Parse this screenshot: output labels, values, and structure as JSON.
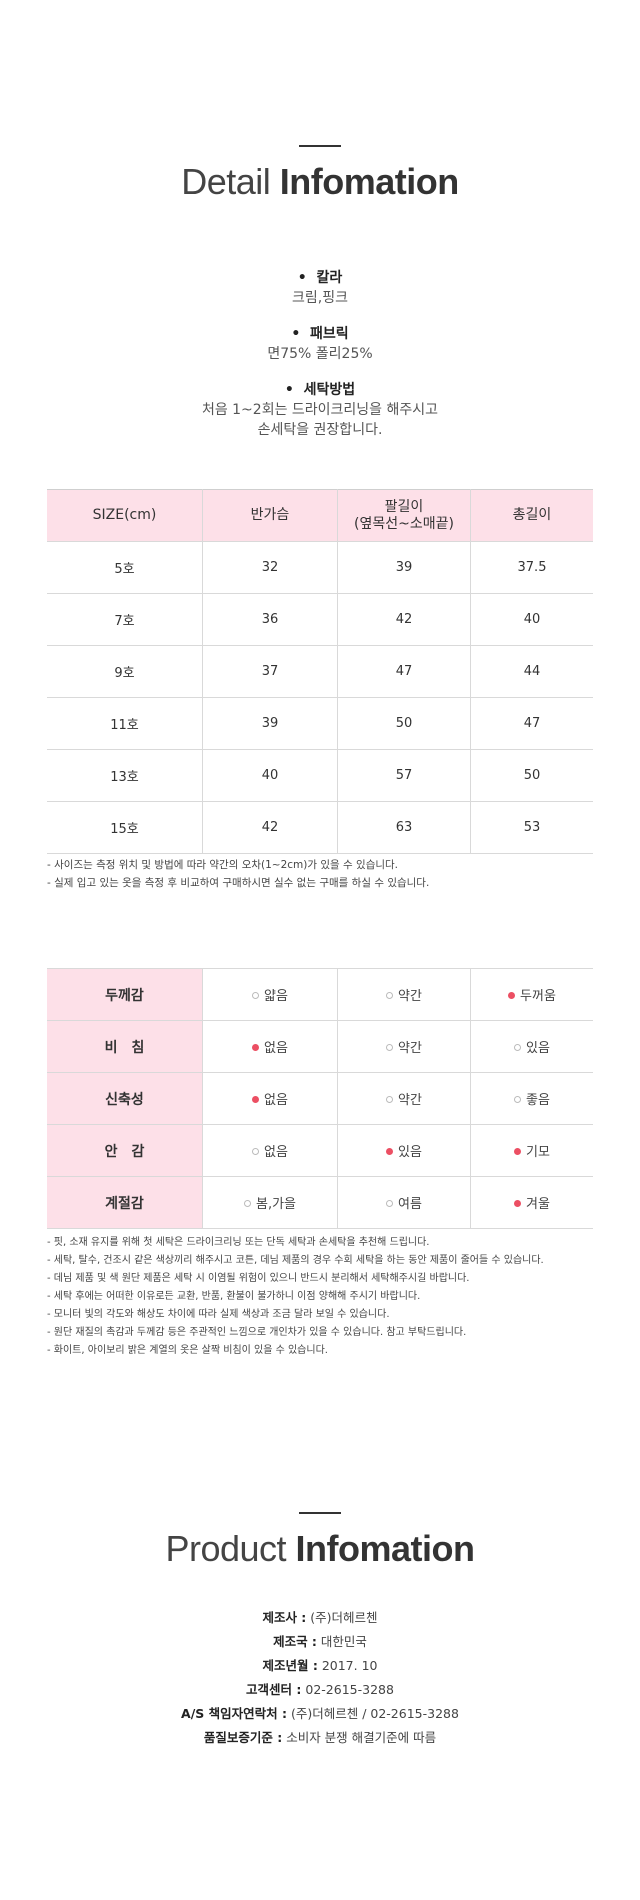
{
  "detail_title": {
    "light": "Detail",
    "bold": "Infomation"
  },
  "specs": [
    {
      "head": "칼라",
      "lines": [
        "크림,핑크"
      ]
    },
    {
      "head": "패브릭",
      "lines": [
        "면75% 폴리25%"
      ]
    },
    {
      "head": "세탁방법",
      "lines": [
        "처음 1~2회는 드라이크리닝을 해주시고",
        "손세탁을 권장합니다."
      ]
    }
  ],
  "bullet": "•",
  "size_table": {
    "headers": [
      "SIZE(cm)",
      "반가슴",
      "팔길이",
      "(옆목선~소매끝)",
      "총길이"
    ],
    "rows": [
      [
        "5호",
        "32",
        "39",
        "37.5"
      ],
      [
        "7호",
        "36",
        "42",
        "40"
      ],
      [
        "9호",
        "37",
        "47",
        "44"
      ],
      [
        "11호",
        "39",
        "50",
        "47"
      ],
      [
        "13호",
        "40",
        "57",
        "50"
      ],
      [
        "15호",
        "42",
        "63",
        "53"
      ]
    ]
  },
  "size_notes": [
    "- 사이즈는 측정 위치 및 방법에 따라 약간의 오차(1~2cm)가 있을 수 있습니다.",
    "- 실제 입고 있는 옷을 측정 후 비교하여 구매하시면 실수 없는 구매를 하실 수 있습니다."
  ],
  "feature_table": [
    {
      "label": "두께감",
      "options": [
        "얇음",
        "약간",
        "두꺼움"
      ],
      "selected": [
        false,
        false,
        true
      ]
    },
    {
      "label": "비　침",
      "options": [
        "없음",
        "약간",
        "있음"
      ],
      "selected": [
        true,
        false,
        false
      ]
    },
    {
      "label": "신축성",
      "options": [
        "없음",
        "약간",
        "좋음"
      ],
      "selected": [
        true,
        false,
        false
      ]
    },
    {
      "label": "안　감",
      "options": [
        "없음",
        "있음",
        "기모"
      ],
      "selected": [
        false,
        true,
        true
      ]
    },
    {
      "label": "계절감",
      "options": [
        "봄,가을",
        "여름",
        "겨울"
      ],
      "selected": [
        false,
        false,
        true
      ]
    }
  ],
  "care_notes": [
    "- 핏, 소재 유지를 위해 첫 세탁은 드라이크리닝 또는 단독 세탁과 손세탁을 추천해 드립니다.",
    "- 세탁, 탈수, 건조시 같은 색상끼리 해주시고 코튼, 데님 제품의 경우 수회 세탁을 하는 동안 제품이 줄어들 수 있습니다.",
    "- 데님 제품 및 색 원단 제품은 세탁 시 이염될 위험이 있으니 반드시 분리해서 세탁해주시길 바랍니다.",
    "- 세탁 후에는 어떠한 이유로든 교환, 반품, 환불이 불가하니 이점 양해해 주시기 바랍니다.",
    "- 모니터 빛의 각도와 해상도 차이에 따라 실제 색상과 조금 달라 보일 수 있습니다.",
    "- 원단 재질의 촉감과 두께감 등은 주관적인 느낌으로 개인차가 있을 수 있습니다. 참고 부탁드립니다.",
    "- 화이트, 아이보리 밝은 계열의 옷은 살짝 비침이 있을 수 있습니다."
  ],
  "product_title": {
    "light": "Product",
    "bold": "Infomation"
  },
  "product_info": [
    {
      "label": "제조사 :",
      "value": "(주)더헤르첸"
    },
    {
      "label": "제조국 :",
      "value": "대한민국"
    },
    {
      "label": "제조년월 :",
      "value": "2017. 10"
    },
    {
      "label": "고객센터 :",
      "value": "02-2615-3288"
    },
    {
      "label": "A/S 책임자연락처 :",
      "value": "(주)더헤르첸 / 02-2615-3288"
    },
    {
      "label": "품질보증기준 :",
      "value": "소비자 분쟁 해결기준에 따름"
    }
  ],
  "colors": {
    "header_bg": "#fde0e8",
    "dot_selected": "#ec4f63"
  }
}
